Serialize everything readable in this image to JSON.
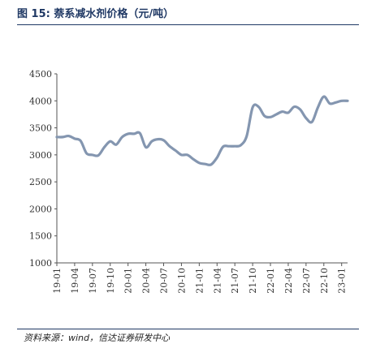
{
  "figure": {
    "title": "图 15:  萘系减水剂价格（元/吨）",
    "source": "资料来源：wind，信达证券研发中心"
  },
  "chart_data": {
    "type": "line",
    "title": "萘系减水剂价格（元/吨）",
    "xlabel": "",
    "ylabel": "",
    "ylim": [
      1000,
      4500
    ],
    "yticks": [
      "1000",
      "1500",
      "2000",
      "2500",
      "3000",
      "3500",
      "4000",
      "4500"
    ],
    "xticks": [
      "19-01",
      "19-04",
      "19-07",
      "19-10",
      "20-01",
      "20-04",
      "20-07",
      "20-10",
      "21-01",
      "21-04",
      "21-07",
      "21-10",
      "22-01",
      "22-04",
      "22-07",
      "22-10",
      "23-01"
    ],
    "grid": false,
    "legend": "none",
    "line_color": "#8496b0",
    "series": [
      {
        "name": "",
        "values": [
          [
            "2019-01-01",
            3330
          ],
          [
            "2019-02-01",
            3330
          ],
          [
            "2019-03-01",
            3350
          ],
          [
            "2019-04-01",
            3300
          ],
          [
            "2019-05-01",
            3260
          ],
          [
            "2019-06-01",
            3030
          ],
          [
            "2019-07-01",
            3000
          ],
          [
            "2019-08-01",
            2990
          ],
          [
            "2019-09-01",
            3140
          ],
          [
            "2019-10-01",
            3250
          ],
          [
            "2019-11-01",
            3190
          ],
          [
            "2019-12-01",
            3330
          ],
          [
            "2020-01-01",
            3390
          ],
          [
            "2020-02-01",
            3390
          ],
          [
            "2020-03-01",
            3400
          ],
          [
            "2020-04-01",
            3140
          ],
          [
            "2020-05-01",
            3250
          ],
          [
            "2020-06-01",
            3290
          ],
          [
            "2020-07-01",
            3270
          ],
          [
            "2020-08-01",
            3160
          ],
          [
            "2020-09-01",
            3080
          ],
          [
            "2020-10-01",
            3000
          ],
          [
            "2020-11-01",
            3000
          ],
          [
            "2020-12-01",
            2920
          ],
          [
            "2021-01-01",
            2850
          ],
          [
            "2021-02-01",
            2830
          ],
          [
            "2021-03-01",
            2820
          ],
          [
            "2021-04-01",
            2950
          ],
          [
            "2021-05-01",
            3150
          ],
          [
            "2021-06-01",
            3160
          ],
          [
            "2021-07-01",
            3160
          ],
          [
            "2021-08-01",
            3180
          ],
          [
            "2021-09-01",
            3350
          ],
          [
            "2021-10-01",
            3880
          ],
          [
            "2021-11-01",
            3890
          ],
          [
            "2021-12-01",
            3720
          ],
          [
            "2022-01-01",
            3700
          ],
          [
            "2022-02-01",
            3750
          ],
          [
            "2022-03-01",
            3800
          ],
          [
            "2022-04-01",
            3780
          ],
          [
            "2022-05-01",
            3890
          ],
          [
            "2022-06-01",
            3840
          ],
          [
            "2022-07-01",
            3680
          ],
          [
            "2022-08-01",
            3610
          ],
          [
            "2022-09-01",
            3880
          ],
          [
            "2022-10-01",
            4080
          ],
          [
            "2022-11-01",
            3950
          ],
          [
            "2022-12-01",
            3970
          ],
          [
            "2023-01-01",
            4000
          ],
          [
            "2023-02-01",
            4000
          ]
        ]
      }
    ]
  }
}
